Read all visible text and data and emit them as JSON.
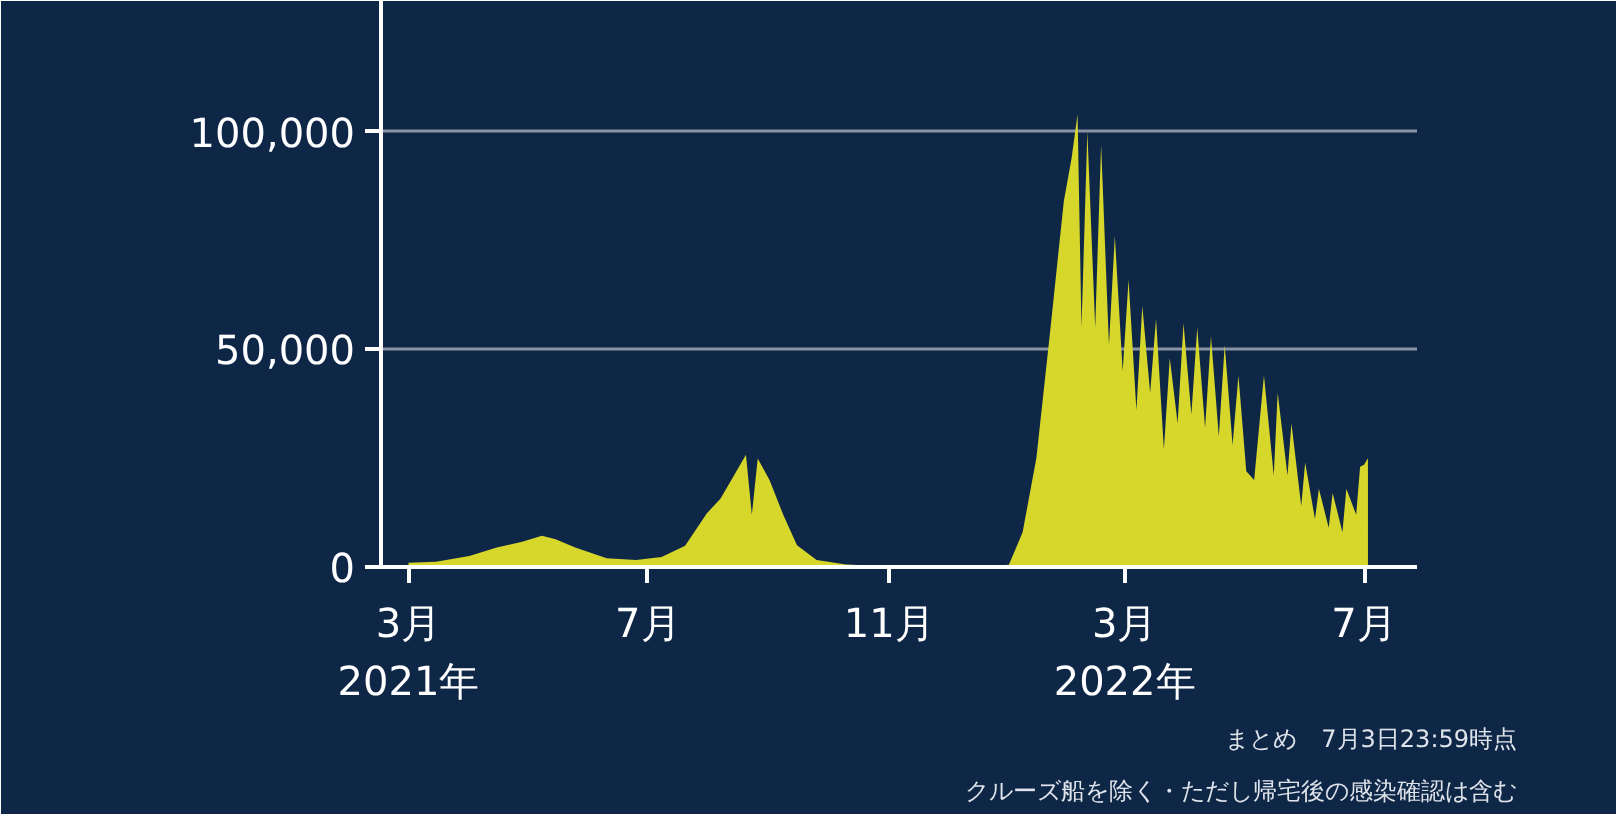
{
  "chart_data": {
    "type": "area",
    "color": "#d6d62b",
    "grid": "y",
    "xlim": [
      "2021-02-15",
      "2022-07-28"
    ],
    "ylim": [
      0,
      130000
    ],
    "xticks": [
      {
        "value": "2021-03-01",
        "label": "3月\n2021年"
      },
      {
        "value": "2021-07-01",
        "label": "7月"
      },
      {
        "value": "2021-11-01",
        "label": "11月"
      },
      {
        "value": "2022-03-01",
        "label": "3月\n2022年"
      },
      {
        "value": "2022-07-01",
        "label": "7月"
      }
    ],
    "yticks": [
      0,
      {
        "value": 50000,
        "label": "50,000"
      },
      {
        "value": 100000,
        "label": "100,000"
      }
    ],
    "x": [
      "2021-03-01",
      "2021-03-15",
      "2021-04-01",
      "2021-04-15",
      "2021-04-28",
      "2021-05-08",
      "2021-05-15",
      "2021-05-25",
      "2021-06-10",
      "2021-06-25",
      "2021-07-08",
      "2021-07-20",
      "2021-07-31",
      "2021-08-07",
      "2021-08-13",
      "2021-08-20",
      "2021-08-23",
      "2021-08-26",
      "2021-09-01",
      "2021-09-08",
      "2021-09-15",
      "2021-09-25",
      "2021-10-10",
      "2021-11-01",
      "2021-12-01",
      "2021-12-25",
      "2022-01-01",
      "2022-01-08",
      "2022-01-15",
      "2022-01-22",
      "2022-01-29",
      "2022-02-02",
      "2022-02-05",
      "2022-02-07",
      "2022-02-10",
      "2022-02-14",
      "2022-02-17",
      "2022-02-21",
      "2022-02-24",
      "2022-02-28",
      "2022-03-03",
      "2022-03-07",
      "2022-03-10",
      "2022-03-14",
      "2022-03-17",
      "2022-03-21",
      "2022-03-24",
      "2022-03-28",
      "2022-03-31",
      "2022-04-04",
      "2022-04-07",
      "2022-04-11",
      "2022-04-14",
      "2022-04-18",
      "2022-04-21",
      "2022-04-25",
      "2022-04-28",
      "2022-05-02",
      "2022-05-06",
      "2022-05-11",
      "2022-05-16",
      "2022-05-18",
      "2022-05-23",
      "2022-05-25",
      "2022-05-30",
      "2022-06-01",
      "2022-06-06",
      "2022-06-08",
      "2022-06-13",
      "2022-06-15",
      "2022-06-20",
      "2022-06-22",
      "2022-06-27",
      "2022-06-29",
      "2022-07-01",
      "2022-07-03"
    ],
    "values": [
      1000,
      1200,
      2500,
      4500,
      5800,
      7200,
      6400,
      4500,
      2000,
      1600,
      2300,
      4900,
      12300,
      15700,
      20300,
      25800,
      12000,
      24900,
      20000,
      12000,
      5000,
      1600,
      600,
      200,
      100,
      300,
      500,
      8000,
      25000,
      54000,
      84000,
      94000,
      104000,
      55000,
      100000,
      55000,
      97000,
      51000,
      76000,
      45000,
      66000,
      36000,
      60000,
      40000,
      57000,
      27000,
      48000,
      33000,
      56000,
      35000,
      55000,
      32000,
      53000,
      30000,
      51000,
      28000,
      44000,
      22000,
      20000,
      44000,
      21000,
      40000,
      21000,
      33000,
      14000,
      24000,
      11000,
      18000,
      9000,
      17000,
      8000,
      18000,
      12000,
      23000,
      23500,
      25000
    ],
    "annotations": [
      "まとめ　7月3日23:59時点",
      "クルーズ船を除く・ただし帰宅後の感染確認は含む"
    ]
  }
}
